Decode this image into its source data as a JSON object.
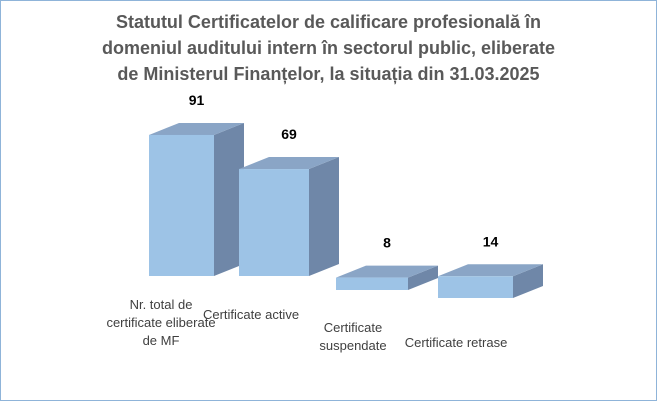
{
  "chart_data": {
    "type": "bar3d",
    "title": "Statutul Certificatelor de calificare profesională în domeniul auditului intern în sectorul public, eliberate de Ministerul Finanțelor, la situația din 31.03.2025",
    "categories": [
      "Nr. total de certificate eliberate de MF",
      "Certificate active",
      "Certificate suspendate",
      "Certificate retrase"
    ],
    "values": [
      91,
      69,
      8,
      14
    ],
    "color": "#9dc3e6"
  }
}
